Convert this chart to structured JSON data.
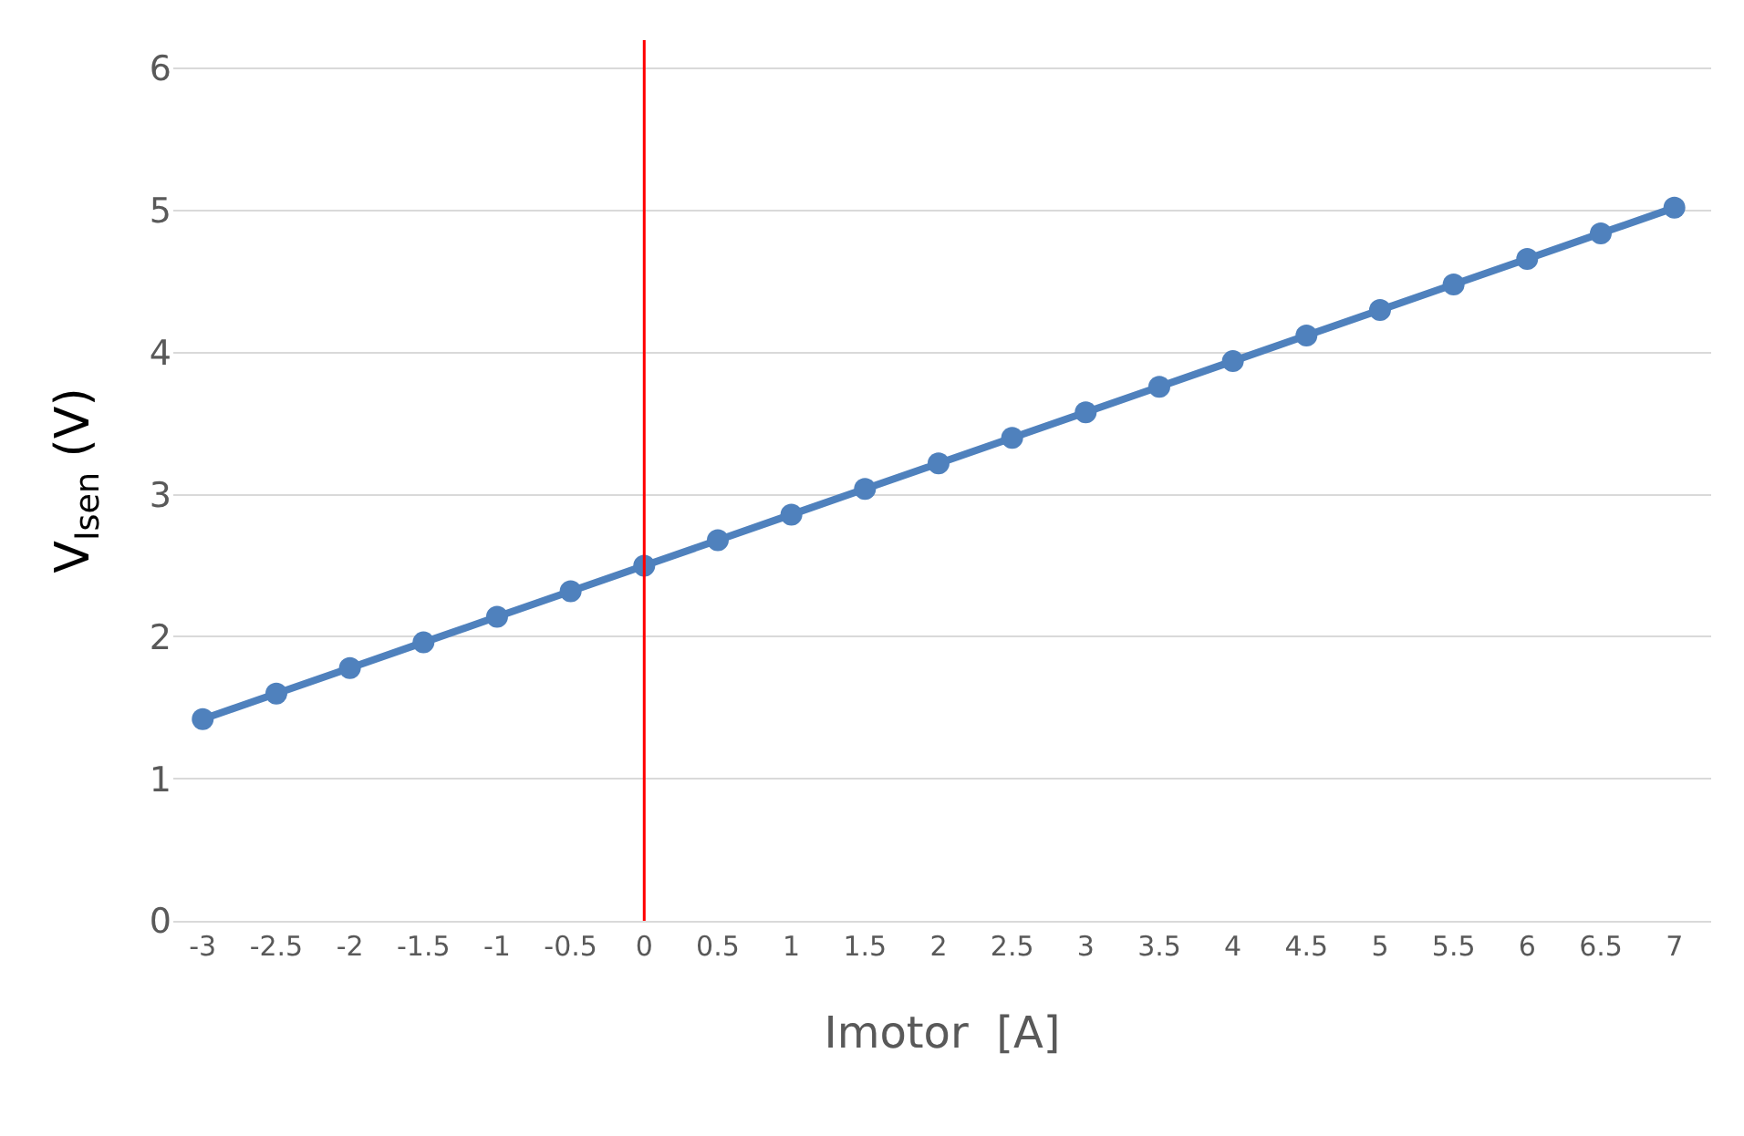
{
  "chart_data": {
    "type": "line",
    "xlabel": "Imotor  [A]",
    "ylabel": "V$_{Isen}$ (V)",
    "x": [
      -3,
      -2.5,
      -2,
      -1.5,
      -1,
      -0.5,
      0,
      0.5,
      1,
      1.5,
      2,
      2.5,
      3,
      3.5,
      4,
      4.5,
      5,
      5.5,
      6,
      6.5,
      7
    ],
    "series": [
      {
        "color": "#4f81bd",
        "values": [
          1.42,
          1.6,
          1.78,
          1.96,
          2.14,
          2.32,
          2.5,
          2.68,
          2.86,
          3.04,
          3.22,
          3.4,
          3.58,
          3.76,
          3.94,
          4.12,
          4.3,
          4.48,
          4.66,
          4.84,
          5.02
        ]
      }
    ],
    "xlim": [
      -3.2,
      7.25
    ],
    "xticks": [
      -3,
      -2.5,
      -2,
      -1.5,
      -1,
      -0.5,
      0,
      0.5,
      1,
      1.5,
      2,
      2.5,
      3,
      3.5,
      4,
      4.5,
      5,
      5.5,
      6,
      6.5,
      7
    ],
    "ylim": [
      0,
      6.2
    ],
    "yticks": [
      0,
      1,
      2,
      3,
      4,
      5,
      6
    ],
    "ref_lines": [
      {
        "axis": "x",
        "value": 0,
        "color": "#ff0000"
      }
    ],
    "grid": "y",
    "marker": "circle",
    "line_style": "solid",
    "legend": false
  }
}
